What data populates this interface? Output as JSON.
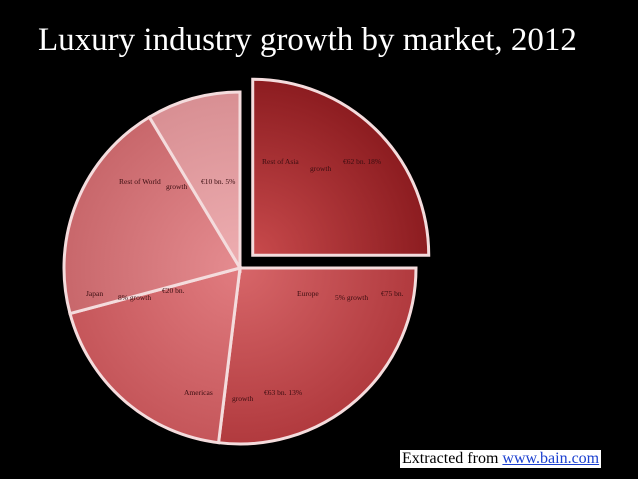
{
  "title": "Luxury industry growth by market, 2012",
  "credit": {
    "prefix": "Extracted from ",
    "link_text": "www.bain.com"
  },
  "chart_data": {
    "type": "pie",
    "title": "Luxury industry growth by market, 2012",
    "slices": [
      {
        "market": "Rest of Asia",
        "value": 62,
        "labels": [
          "Rest of Asia",
          "€62 bn. 18%",
          "growth"
        ],
        "exploded": true,
        "color_inner": "#c84a4c",
        "color_outer": "#8c1c20"
      },
      {
        "market": "Europe",
        "value": 75,
        "labels": [
          "Europe",
          "€75 bn.",
          "5% growth"
        ],
        "exploded": false,
        "color_inner": "#d76669",
        "color_outer": "#b13a3e"
      },
      {
        "market": "Americas",
        "value": 63,
        "labels": [
          "Americas",
          "€63 bn. 13%",
          "growth"
        ],
        "exploded": false,
        "color_inner": "#e17c80",
        "color_outer": "#c5565a"
      },
      {
        "market": "Japan",
        "value": 20,
        "labels": [
          "Japan",
          "€20 bn.",
          "8% growth"
        ],
        "exploded": false,
        "color_inner": "#e58c90",
        "color_outer": "#c8676b"
      },
      {
        "market": "Rest of World",
        "value": 10,
        "labels": [
          "Rest of World",
          "€10 bn. 5%",
          "growth"
        ],
        "exploded": false,
        "color_inner": "#eeaeb1",
        "color_outer": "#d88f93"
      }
    ]
  }
}
